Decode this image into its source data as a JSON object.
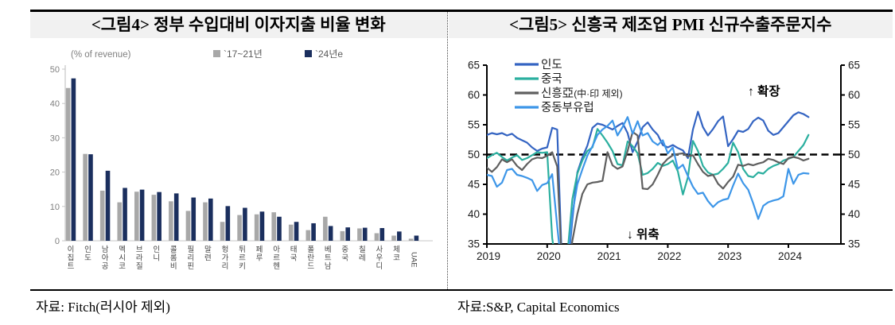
{
  "left_panel": {
    "title": "<그림4> 정부 수입대비 이자지출 비율 변화",
    "source": "자료: Fitch(러시아 제외)",
    "chart_data": {
      "type": "bar",
      "unit_label": "(% of revenue)",
      "ylim": [
        0,
        50
      ],
      "y_ticks": [
        0,
        10,
        20,
        30,
        40,
        50
      ],
      "grid": false,
      "legend_position": "top",
      "categories": [
        "이집트",
        "인도",
        "남아공",
        "멕시코",
        "브라질",
        "인니",
        "콜롬비",
        "필리핀",
        "말련",
        "헝가리",
        "튀르키",
        "페루",
        "아르헨",
        "태국",
        "폴란드",
        "베트남",
        "중국",
        "칠레",
        "사우디",
        "체코",
        "UAE"
      ],
      "series": [
        {
          "name": "`17~21년",
          "color": "#A8A8A8",
          "values": [
            44.5,
            25.3,
            14.6,
            11.2,
            14.3,
            13.4,
            11.5,
            8.7,
            11.2,
            5.5,
            7.5,
            7.7,
            8.3,
            4.7,
            3.1,
            7.0,
            2.8,
            3.6,
            2.2,
            1.5,
            0.6
          ]
        },
        {
          "name": "`24년e",
          "color": "#1B2F5E",
          "values": [
            47.3,
            25.2,
            20.4,
            15.4,
            14.9,
            14.2,
            13.8,
            12.6,
            12.3,
            10.1,
            9.6,
            8.5,
            7.0,
            5.5,
            5.1,
            4.3,
            3.9,
            3.8,
            3.7,
            2.7,
            1.5
          ]
        }
      ]
    }
  },
  "right_panel": {
    "title": "<그림5> 신흥국 제조업 PMI 신규수출주문지수",
    "source": "자료:S&P, Capital Economics",
    "chart_data": {
      "type": "line",
      "ylim": [
        35,
        65
      ],
      "y_ticks": [
        35,
        40,
        45,
        50,
        55,
        60,
        65
      ],
      "x_ticks": [
        2019,
        2020,
        2021,
        2022,
        2023,
        2024
      ],
      "x_start": 2019.0,
      "x_step_months": 1,
      "reference_line": 50,
      "grid": false,
      "legend_position": "top-left",
      "annotations": {
        "expand": "↑ 확장",
        "contract": "↓ 위축"
      },
      "series": [
        {
          "name": "인도",
          "suffix": "",
          "color": "#3464C2",
          "values": [
            53.3,
            53.6,
            53.4,
            53.6,
            53.2,
            53.5,
            52.8,
            52.4,
            52.0,
            51.2,
            50.6,
            51.0,
            51.2,
            54.5,
            54.2,
            30,
            30,
            39,
            47.0,
            49.5,
            51.5,
            54.5,
            55.2,
            55.0,
            54.6,
            54.2,
            54.8,
            55.3,
            53.6,
            50.4,
            52.2,
            54.6,
            55.4,
            54.2,
            53.3,
            51.6,
            51.2,
            51.6,
            51.1,
            50.7,
            49.4,
            54.2,
            57.2,
            54.6,
            53.2,
            54.3,
            55.6,
            56.4,
            51.4,
            52.6,
            54.0,
            53.8,
            54.3,
            55.6,
            56.2,
            55.7,
            54.0,
            53.3,
            53.6,
            54.6,
            55.6,
            56.6,
            57.1,
            56.8,
            56.3
          ]
        },
        {
          "name": "중국",
          "suffix": "",
          "color": "#2BAF9F",
          "values": [
            49.4,
            49.9,
            50.3,
            49.6,
            49.0,
            49.5,
            49.9,
            49.1,
            49.4,
            49.9,
            50.4,
            50.3,
            50.4,
            36.0,
            30,
            29,
            33,
            42.5,
            46.8,
            49.0,
            50.6,
            51.2,
            54.3,
            53.2,
            52.0,
            50.6,
            48.4,
            48.2,
            52.2,
            51.4,
            50.2,
            46.6,
            46.9,
            47.6,
            48.6,
            48.1,
            48.4,
            49.0,
            47.2,
            43.3,
            46.2,
            52.3,
            50.6,
            48.1,
            47.0,
            46.6,
            46.8,
            47.6,
            48.6,
            52.0,
            50.4,
            47.6,
            46.4,
            46.2,
            47.0,
            46.8,
            47.6,
            48.1,
            48.4,
            49.0,
            49.3,
            49.6,
            50.6,
            51.6,
            53.3
          ]
        },
        {
          "name": "신흥亞",
          "suffix": "(中·印 제외)",
          "color": "#5F5F5F",
          "values": [
            47.8,
            47.1,
            47.9,
            49.2,
            48.7,
            49.2,
            48.1,
            47.4,
            48.4,
            49.2,
            49.5,
            49.4,
            49.8,
            50.4,
            48.0,
            30,
            29,
            35.5,
            40.0,
            43.4,
            45.0,
            45.3,
            45.4,
            45.6,
            50.4,
            48.2,
            47.6,
            48.0,
            50.6,
            53.8,
            53.2,
            44.3,
            44.2,
            45.0,
            46.6,
            48.4,
            49.3,
            49.9,
            50.1,
            50.2,
            49.7,
            49.9,
            48.4,
            47.1,
            46.4,
            46.6,
            45.1,
            44.3,
            45.4,
            46.3,
            48.3,
            48.1,
            48.4,
            48.2,
            48.5,
            48.7,
            49.3,
            49.1,
            48.7,
            48.4,
            49.4,
            49.6,
            49.4,
            49.0,
            49.3
          ]
        },
        {
          "name": "중동부유럽",
          "suffix": "",
          "color": "#3D96E8",
          "values": [
            46.6,
            46.4,
            44.6,
            45.3,
            47.4,
            47.6,
            46.6,
            46.4,
            46.1,
            45.7,
            43.9,
            44.9,
            45.2,
            46.7,
            38.0,
            30,
            31,
            40.0,
            45.0,
            47.5,
            49.8,
            51.4,
            53.3,
            54.2,
            54.8,
            55.7,
            53.2,
            54.6,
            56.3,
            53.5,
            55.6,
            53.2,
            53.6,
            52.2,
            51.6,
            52.4,
            50.2,
            51.2,
            47.6,
            48.3,
            46.4,
            44.6,
            43.4,
            43.6,
            42.2,
            41.2,
            42.0,
            42.4,
            42.6,
            44.8,
            46.8,
            45.2,
            44.1,
            41.8,
            39.2,
            41.4,
            42.0,
            42.3,
            42.5,
            43.0,
            47.6,
            45.1,
            46.6,
            46.9,
            46.8
          ]
        }
      ]
    }
  }
}
